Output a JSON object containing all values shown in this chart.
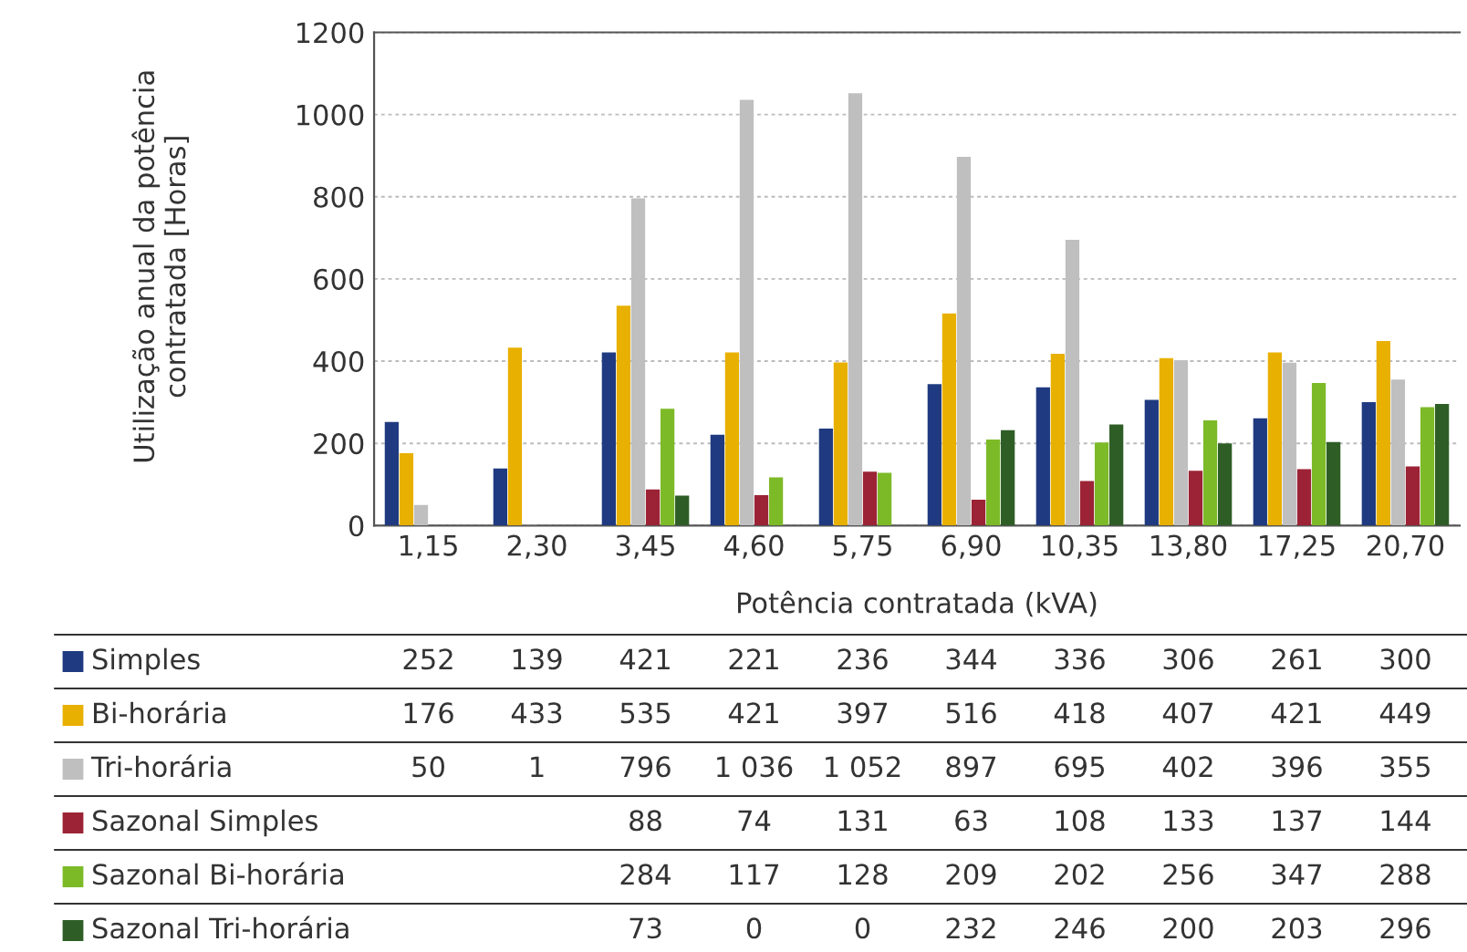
{
  "chart_data": {
    "type": "bar",
    "xlabel": "Potência contratada (kVA)",
    "ylabel": "Utilização anual da potência contratada [Horas]",
    "categories": [
      "1,15",
      "2,30",
      "3,45",
      "4,60",
      "5,75",
      "6,90",
      "10,35",
      "13,80",
      "17,25",
      "20,70"
    ],
    "series": [
      {
        "name": "Simples",
        "color": "#1f3a80",
        "values": [
          252,
          139,
          421,
          221,
          236,
          344,
          336,
          306,
          261,
          300
        ],
        "value_labels": [
          "252",
          "139",
          "421",
          "221",
          "236",
          "344",
          "336",
          "306",
          "261",
          "300"
        ]
      },
      {
        "name": "Bi-horária",
        "color": "#e8b000",
        "values": [
          176,
          433,
          535,
          421,
          397,
          516,
          418,
          407,
          421,
          449
        ],
        "value_labels": [
          "176",
          "433",
          "535",
          "421",
          "397",
          "516",
          "418",
          "407",
          "421",
          "449"
        ]
      },
      {
        "name": "Tri-horária",
        "color": "#bfbfbf",
        "values": [
          50,
          1,
          796,
          1036,
          1052,
          897,
          695,
          402,
          396,
          355
        ],
        "value_labels": [
          "50",
          "1",
          "796",
          "1 036",
          "1 052",
          "897",
          "695",
          "402",
          "396",
          "355"
        ]
      },
      {
        "name": "Sazonal Simples",
        "color": "#9b2335",
        "values": [
          null,
          null,
          88,
          74,
          131,
          63,
          108,
          133,
          137,
          144
        ],
        "value_labels": [
          null,
          null,
          "88",
          "74",
          "131",
          "63",
          "108",
          "133",
          "137",
          "144"
        ]
      },
      {
        "name": "Sazonal Bi-horária",
        "color": "#7dba28",
        "values": [
          null,
          null,
          284,
          117,
          128,
          209,
          202,
          256,
          347,
          288
        ],
        "value_labels": [
          null,
          null,
          "284",
          "117",
          "128",
          "209",
          "202",
          "256",
          "347",
          "288"
        ]
      },
      {
        "name": "Sazonal Tri-horária",
        "color": "#2e5e26",
        "values": [
          null,
          null,
          73,
          0,
          0,
          232,
          246,
          200,
          203,
          296
        ],
        "value_labels": [
          null,
          null,
          "73",
          "0",
          "0",
          "232",
          "246",
          "200",
          "203",
          "296"
        ]
      }
    ],
    "ylim": [
      0,
      1200
    ],
    "yticks": [
      0,
      200,
      400,
      600,
      800,
      1000,
      1200
    ],
    "grid": "y",
    "legend": "bottom left"
  }
}
